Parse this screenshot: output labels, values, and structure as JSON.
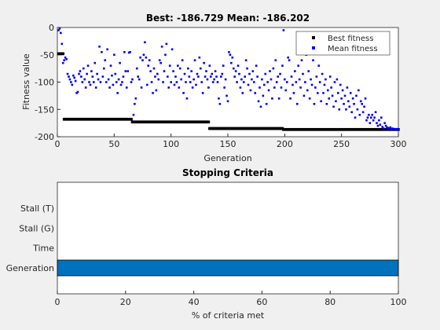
{
  "chart_data": [
    {
      "type": "scatter",
      "title": "Best: -186.729 Mean: -186.202",
      "xlabel": "Generation",
      "ylabel": "Fitness value",
      "xlim": [
        0,
        300
      ],
      "xticks": [
        0,
        50,
        100,
        150,
        200,
        250,
        300
      ],
      "ylim": [
        -200,
        0
      ],
      "yticks": [
        -200,
        -150,
        -100,
        -50,
        0
      ],
      "legend": "upper right",
      "x": [
        1,
        2,
        3,
        4,
        5,
        6,
        7,
        8,
        9,
        10,
        11,
        12,
        13,
        14,
        15,
        16,
        17,
        18,
        19,
        20,
        21,
        22,
        23,
        24,
        25,
        26,
        27,
        28,
        29,
        30,
        31,
        32,
        33,
        34,
        35,
        36,
        37,
        38,
        39,
        40,
        41,
        42,
        43,
        44,
        45,
        46,
        47,
        48,
        49,
        50,
        51,
        52,
        53,
        54,
        55,
        56,
        57,
        58,
        59,
        60,
        61,
        62,
        63,
        64,
        65,
        66,
        67,
        68,
        69,
        70,
        71,
        72,
        73,
        74,
        75,
        76,
        77,
        78,
        79,
        80,
        81,
        82,
        83,
        84,
        85,
        86,
        87,
        88,
        89,
        90,
        91,
        92,
        93,
        94,
        95,
        96,
        97,
        98,
        99,
        100,
        101,
        102,
        103,
        104,
        105,
        106,
        107,
        108,
        109,
        110,
        111,
        112,
        113,
        114,
        115,
        116,
        117,
        118,
        119,
        120,
        121,
        122,
        123,
        124,
        125,
        126,
        127,
        128,
        129,
        130,
        131,
        132,
        133,
        134,
        135,
        136,
        137,
        138,
        139,
        140,
        141,
        142,
        143,
        144,
        145,
        146,
        147,
        148,
        149,
        150,
        151,
        152,
        153,
        154,
        155,
        156,
        157,
        158,
        159,
        160,
        161,
        162,
        163,
        164,
        165,
        166,
        167,
        168,
        169,
        170,
        171,
        172,
        173,
        174,
        175,
        176,
        177,
        178,
        179,
        180,
        181,
        182,
        183,
        184,
        185,
        186,
        187,
        188,
        189,
        190,
        191,
        192,
        193,
        194,
        195,
        196,
        197,
        198,
        199,
        200,
        201,
        202,
        203,
        204,
        205,
        206,
        207,
        208,
        209,
        210,
        211,
        212,
        213,
        214,
        215,
        216,
        217,
        218,
        219,
        220,
        221,
        222,
        223,
        224,
        225,
        226,
        227,
        228,
        229,
        230,
        231,
        232,
        233,
        234,
        235,
        236,
        237,
        238,
        239,
        240,
        241,
        242,
        243,
        244,
        245,
        246,
        247,
        248,
        249,
        250,
        251,
        252,
        253,
        254,
        255,
        256,
        257,
        258,
        259,
        260,
        261,
        262,
        263,
        264,
        265,
        266,
        267,
        268,
        269,
        270,
        271,
        272,
        273,
        274,
        275,
        276,
        277,
        278,
        279,
        280,
        281,
        282,
        283,
        284,
        285,
        286,
        287,
        288,
        289,
        290,
        291,
        292,
        293,
        294,
        295,
        296,
        297,
        298,
        299,
        300
      ],
      "series": [
        {
          "name": "Best fitness",
          "color": "#000000",
          "values": [
            -48,
            -48,
            -48,
            -48,
            -48,
            -168,
            -168,
            -168,
            -168,
            -168,
            -168,
            -168,
            -168,
            -168,
            -168,
            -168,
            -168,
            -168,
            -168,
            -168,
            -168,
            -168,
            -168,
            -168,
            -168,
            -168,
            -168,
            -168,
            -168,
            -168,
            -168,
            -168,
            -168,
            -168,
            -168,
            -168,
            -168,
            -168,
            -168,
            -168,
            -168,
            -168,
            -168,
            -168,
            -168,
            -168,
            -168,
            -168,
            -168,
            -168,
            -168,
            -168,
            -168,
            -168,
            -168,
            -168,
            -168,
            -168,
            -168,
            -168,
            -168,
            -168,
            -168,
            -168,
            -168,
            -173,
            -173,
            -173,
            -173,
            -173,
            -173,
            -173,
            -173,
            -173,
            -173,
            -173,
            -173,
            -173,
            -173,
            -173,
            -173,
            -173,
            -173,
            -173,
            -173,
            -173,
            -173,
            -173,
            -173,
            -173,
            -173,
            -173,
            -173,
            -173,
            -173,
            -173,
            -173,
            -173,
            -173,
            -173,
            -173,
            -173,
            -173,
            -173,
            -173,
            -173,
            -173,
            -173,
            -173,
            -173,
            -173,
            -173,
            -173,
            -173,
            -173,
            -173,
            -173,
            -173,
            -173,
            -173,
            -173,
            -173,
            -173,
            -173,
            -173,
            -173,
            -173,
            -173,
            -173,
            -173,
            -173,
            -173,
            -173,
            -185,
            -185,
            -185,
            -185,
            -185,
            -185,
            -185,
            -185,
            -185,
            -185,
            -185,
            -185,
            -185,
            -185,
            -185,
            -185,
            -185,
            -185,
            -185,
            -185,
            -185,
            -185,
            -185,
            -185,
            -185,
            -185,
            -185,
            -185,
            -185,
            -185,
            -185,
            -185,
            -185,
            -185,
            -185,
            -185,
            -185,
            -185,
            -185,
            -185,
            -185,
            -185,
            -185,
            -185,
            -185,
            -185,
            -185,
            -185,
            -185,
            -185,
            -185,
            -185,
            -185,
            -185,
            -185,
            -185,
            -185,
            -185,
            -185,
            -185,
            -185,
            -185,
            -185,
            -185,
            -185,
            -186.729,
            -186.729,
            -186.729,
            -186.729,
            -186.729,
            -186.729,
            -186.729,
            -186.729,
            -186.729,
            -186.729,
            -186.729,
            -186.729,
            -186.729,
            -186.729,
            -186.729,
            -186.729,
            -186.729,
            -186.729,
            -186.729,
            -186.729,
            -186.729,
            -186.729,
            -186.729,
            -186.729,
            -186.729,
            -186.729,
            -186.729,
            -186.729,
            -186.729,
            -186.729,
            -186.729,
            -186.729,
            -186.729,
            -186.729,
            -186.729,
            -186.729,
            -186.729,
            -186.729,
            -186.729,
            -186.729,
            -186.729,
            -186.729,
            -186.729,
            -186.729,
            -186.729,
            -186.729,
            -186.729,
            -186.729,
            -186.729,
            -186.729,
            -186.729,
            -186.729,
            -186.729,
            -186.729,
            -186.729,
            -186.729,
            -186.729,
            -186.729,
            -186.729,
            -186.729,
            -186.729,
            -186.729,
            -186.729,
            -186.729,
            -186.729,
            -186.729,
            -186.729,
            -186.729,
            -186.729,
            -186.729,
            -186.729,
            -186.729,
            -186.729,
            -186.729,
            -186.729,
            -186.729,
            -186.729,
            -186.729,
            -186.729,
            -186.729,
            -186.729,
            -186.729,
            -186.729,
            -186.729,
            -186.729,
            -186.729,
            -186.729,
            -186.729,
            -186.729,
            -186.729,
            -186.729,
            -186.729,
            -186.729,
            -186.729,
            -186.729,
            -186.729,
            -186.729,
            -186.729,
            -186.729,
            -186.729,
            -186.729,
            -186.729
          ]
        },
        {
          "name": "Mean fitness",
          "color": "#0000ff",
          "values": [
            -5,
            -2,
            -10,
            -30,
            -65,
            -60,
            -55,
            -58,
            -85,
            -90,
            -95,
            -100,
            -105,
            -88,
            -92,
            -98,
            -120,
            -118,
            -85,
            -80,
            -90,
            -100,
            -75,
            -95,
            -110,
            -85,
            -70,
            -100,
            -105,
            -80,
            -90,
            -100,
            -65,
            -110,
            -85,
            -95,
            -35,
            -100,
            -45,
            -90,
            -75,
            -60,
            -100,
            -40,
            -95,
            -110,
            -70,
            -88,
            -105,
            -50,
            -85,
            -100,
            -120,
            -95,
            -65,
            -105,
            -100,
            -90,
            -45,
            -80,
            -110,
            -80,
            -46,
            -45,
            -100,
            -95,
            -160,
            -140,
            -130,
            -75,
            -90,
            -95,
            -55,
            -110,
            -60,
            -50,
            -27,
            -55,
            -105,
            -70,
            -60,
            -80,
            -100,
            -120,
            -75,
            -90,
            -115,
            -85,
            -95,
            -60,
            -65,
            -35,
            -100,
            -80,
            -50,
            -30,
            -90,
            -110,
            -70,
            -100,
            -40,
            -80,
            -105,
            -90,
            -100,
            -70,
            -110,
            -75,
            -95,
            -60,
            -120,
            -85,
            -100,
            -130,
            -75,
            -90,
            -100,
            -80,
            -110,
            -95,
            -60,
            -105,
            -85,
            -90,
            -55,
            -75,
            -100,
            -120,
            -65,
            -90,
            -80,
            -95,
            -110,
            -70,
            -90,
            -85,
            -100,
            -95,
            -80,
            -90,
            -100,
            -130,
            -140,
            -90,
            -85,
            -70,
            -110,
            -95,
            -125,
            -135,
            -45,
            -50,
            -65,
            -55,
            -75,
            -90,
            -80,
            -100,
            -70,
            -85,
            -110,
            -95,
            -120,
            -100,
            -90,
            -60,
            -75,
            -105,
            -85,
            -115,
            -95,
            -80,
            -100,
            -120,
            -70,
            -90,
            -135,
            -110,
            -145,
            -95,
            -125,
            -105,
            -85,
            -140,
            -100,
            -115,
            -80,
            -95,
            -130,
            -75,
            -110,
            -60,
            -100,
            -90,
            -130,
            -85,
            -110,
            -70,
            -5,
            -95,
            -115,
            -100,
            -55,
            -60,
            -130,
            -90,
            -105,
            -120,
            -80,
            -100,
            -140,
            -70,
            -95,
            -110,
            -60,
            -85,
            -125,
            -100,
            -50,
            -115,
            -80,
            -130,
            -95,
            -105,
            -60,
            -140,
            -110,
            -90,
            -120,
            -70,
            -100,
            -135,
            -85,
            -120,
            -105,
            -95,
            -140,
            -115,
            -130,
            -90,
            -110,
            -125,
            -145,
            -100,
            -135,
            -95,
            -120,
            -150,
            -105,
            -130,
            -115,
            -140,
            -125,
            -150,
            -110,
            -135,
            -145,
            -120,
            -155,
            -130,
            -140,
            -165,
            -125,
            -150,
            -115,
            -160,
            -135,
            -140,
            -155,
            -145,
            -130,
            -170,
            -165,
            -160,
            -175,
            -165,
            -160,
            -170,
            -165,
            -155,
            -175,
            -180,
            -170,
            -178,
            -165,
            -182,
            -185,
            -175,
            -180,
            -183,
            -184,
            -185,
            -183,
            -186,
            -185,
            -186,
            -186,
            -186,
            -186,
            -186.202
          ]
        }
      ]
    },
    {
      "type": "barh",
      "title": "Stopping Criteria",
      "xlabel": "% of criteria met",
      "categories": [
        "Generation",
        "Time",
        "Stall (G)",
        "Stall (T)"
      ],
      "values": [
        100,
        0,
        0,
        0
      ],
      "color": "#0072bd",
      "xlim": [
        0,
        100
      ],
      "xticks": [
        0,
        20,
        40,
        60,
        80,
        100
      ]
    }
  ]
}
